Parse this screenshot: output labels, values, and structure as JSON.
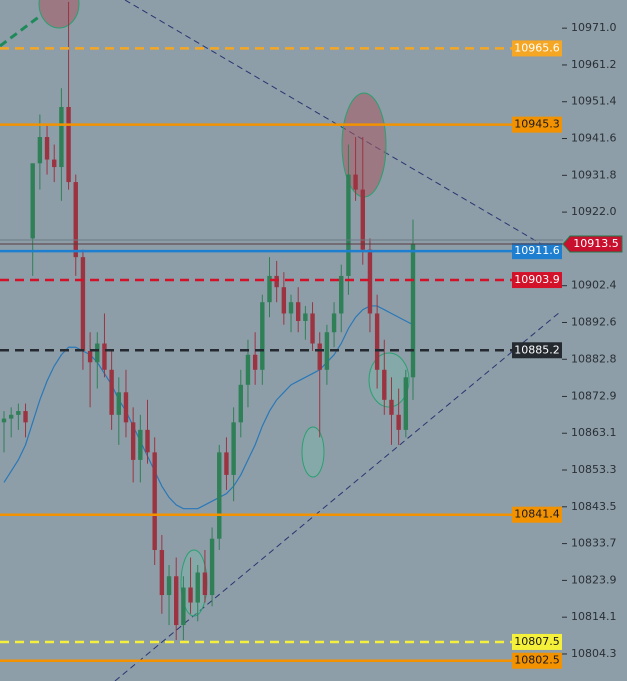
{
  "chart_data": {
    "type": "candlestick",
    "ylim": [
      10797.1,
      10978.5
    ],
    "yticks": [
      {
        "value": 10971.0,
        "label": "10971.0"
      },
      10961.2,
      10951.4,
      10941.6,
      10931.8,
      {
        "value": 10922.0,
        "label": "10922.0"
      },
      10902.4,
      10892.6,
      10882.8,
      10872.9,
      10863.1,
      10853.3,
      10843.5,
      10833.7,
      10823.9,
      10814.1,
      10804.3
    ],
    "up_color": "#2f7f57",
    "down_color": "#9b3440",
    "ma_color": "#2a78b8",
    "candles": [
      [
        10866,
        10869,
        10858,
        10867
      ],
      [
        10867,
        10870,
        10862,
        10868
      ],
      [
        10868,
        10871,
        10864,
        10869
      ],
      [
        10869,
        10871,
        10862,
        10866
      ],
      [
        10915,
        10935,
        10905,
        10935
      ],
      [
        10935,
        10948,
        10928,
        10942
      ],
      [
        10942,
        10945,
        10932,
        10936
      ],
      [
        10936,
        10940,
        10930,
        10934
      ],
      [
        10934,
        10955,
        10925,
        10950
      ],
      [
        10950,
        10978,
        10928,
        10930
      ],
      [
        10930,
        10932,
        10905,
        10910
      ],
      [
        10910,
        10912,
        10880,
        10885
      ],
      [
        10885,
        10890,
        10870,
        10882
      ],
      [
        10882,
        10890,
        10875,
        10887
      ],
      [
        10887,
        10895,
        10878,
        10880
      ],
      [
        10880,
        10885,
        10864,
        10868
      ],
      [
        10868,
        10878,
        10860,
        10874
      ],
      [
        10874,
        10880,
        10862,
        10866
      ],
      [
        10866,
        10870,
        10850,
        10856
      ],
      [
        10856,
        10868,
        10850,
        10864
      ],
      [
        10864,
        10872,
        10855,
        10858
      ],
      [
        10858,
        10862,
        10828,
        10832
      ],
      [
        10832,
        10836,
        10815,
        10820
      ],
      [
        10820,
        10828,
        10812,
        10825
      ],
      [
        10825,
        10830,
        10808,
        10812
      ],
      [
        10812,
        10825,
        10808,
        10822
      ],
      [
        10822,
        10830,
        10815,
        10818
      ],
      [
        10818,
        10828,
        10813,
        10826
      ],
      [
        10826,
        10832,
        10818,
        10820
      ],
      [
        10820,
        10838,
        10817,
        10835
      ],
      [
        10835,
        10860,
        10832,
        10858
      ],
      [
        10858,
        10862,
        10848,
        10852
      ],
      [
        10852,
        10870,
        10845,
        10866
      ],
      [
        10866,
        10880,
        10862,
        10876
      ],
      [
        10876,
        10888,
        10870,
        10884
      ],
      [
        10884,
        10890,
        10876,
        10880
      ],
      [
        10880,
        10900,
        10876,
        10898
      ],
      [
        10898,
        10910,
        10894,
        10905
      ],
      [
        10905,
        10909,
        10898,
        10902
      ],
      [
        10902,
        10906,
        10892,
        10895
      ],
      [
        10895,
        10900,
        10890,
        10898
      ],
      [
        10898,
        10902,
        10890,
        10893
      ],
      [
        10893,
        10897,
        10888,
        10895
      ],
      [
        10895,
        10898,
        10885,
        10887
      ],
      [
        10887,
        10890,
        10862,
        10880
      ],
      [
        10880,
        10892,
        10876,
        10890
      ],
      [
        10890,
        10898,
        10886,
        10895
      ],
      [
        10895,
        10908,
        10890,
        10905
      ],
      [
        10905,
        10940,
        10900,
        10932
      ],
      [
        10932,
        10942,
        10925,
        10928
      ],
      [
        10928,
        10942,
        10908,
        10912
      ],
      [
        10912,
        10915,
        10890,
        10895
      ],
      [
        10895,
        10900,
        10875,
        10880
      ],
      [
        10880,
        10888,
        10868,
        10872
      ],
      [
        10872,
        10878,
        10860,
        10868
      ],
      [
        10868,
        10875,
        10860,
        10864
      ],
      [
        10864,
        10880,
        10862,
        10878
      ],
      [
        10878,
        10920,
        10872,
        10913.5
      ]
    ],
    "ma": [
      10850,
      10853,
      10856,
      10860,
      10866,
      10872,
      10877,
      10881,
      10884,
      10886,
      10886,
      10885,
      10884,
      10882,
      10879,
      10876,
      10872,
      10869,
      10865,
      10861,
      10857,
      10853,
      10849,
      10846,
      10844,
      10843,
      10843,
      10843,
      10844,
      10845,
      10846,
      10847,
      10849,
      10852,
      10856,
      10860,
      10865,
      10869,
      10872,
      10874,
      10876,
      10877,
      10878,
      10879,
      10880,
      10882,
      10884,
      10887,
      10891,
      10894,
      10896,
      10897,
      10897,
      10896,
      10895,
      10894,
      10893,
      10892
    ],
    "price_lines": [
      {
        "value": 10965.6,
        "color": "#f5a623",
        "dash": true,
        "text_color": "#ffffff"
      },
      {
        "value": 10945.3,
        "color": "#f39200",
        "dash": false,
        "text_color": "#1a1a1a"
      },
      {
        "value": 10911.6,
        "color": "#1e7fd0",
        "dash": false,
        "text_color": "#ffffff"
      },
      {
        "value": 10903.9,
        "color": "#d3122a",
        "dash": true,
        "text_color": "#ffffff"
      },
      {
        "value": 10885.2,
        "color": "#252a30",
        "dash": true,
        "text_color": "#ffffff"
      },
      {
        "value": 10841.4,
        "color": "#f39200",
        "dash": false,
        "text_color": "#1a1a1a"
      },
      {
        "value": 10807.5,
        "color": "#f5f03a",
        "dash": true,
        "text_color": "#1a1a1a"
      },
      {
        "value": 10802.5,
        "color": "#f39200",
        "dash": false,
        "text_color": "#1a1a1a"
      }
    ]
  }
}
